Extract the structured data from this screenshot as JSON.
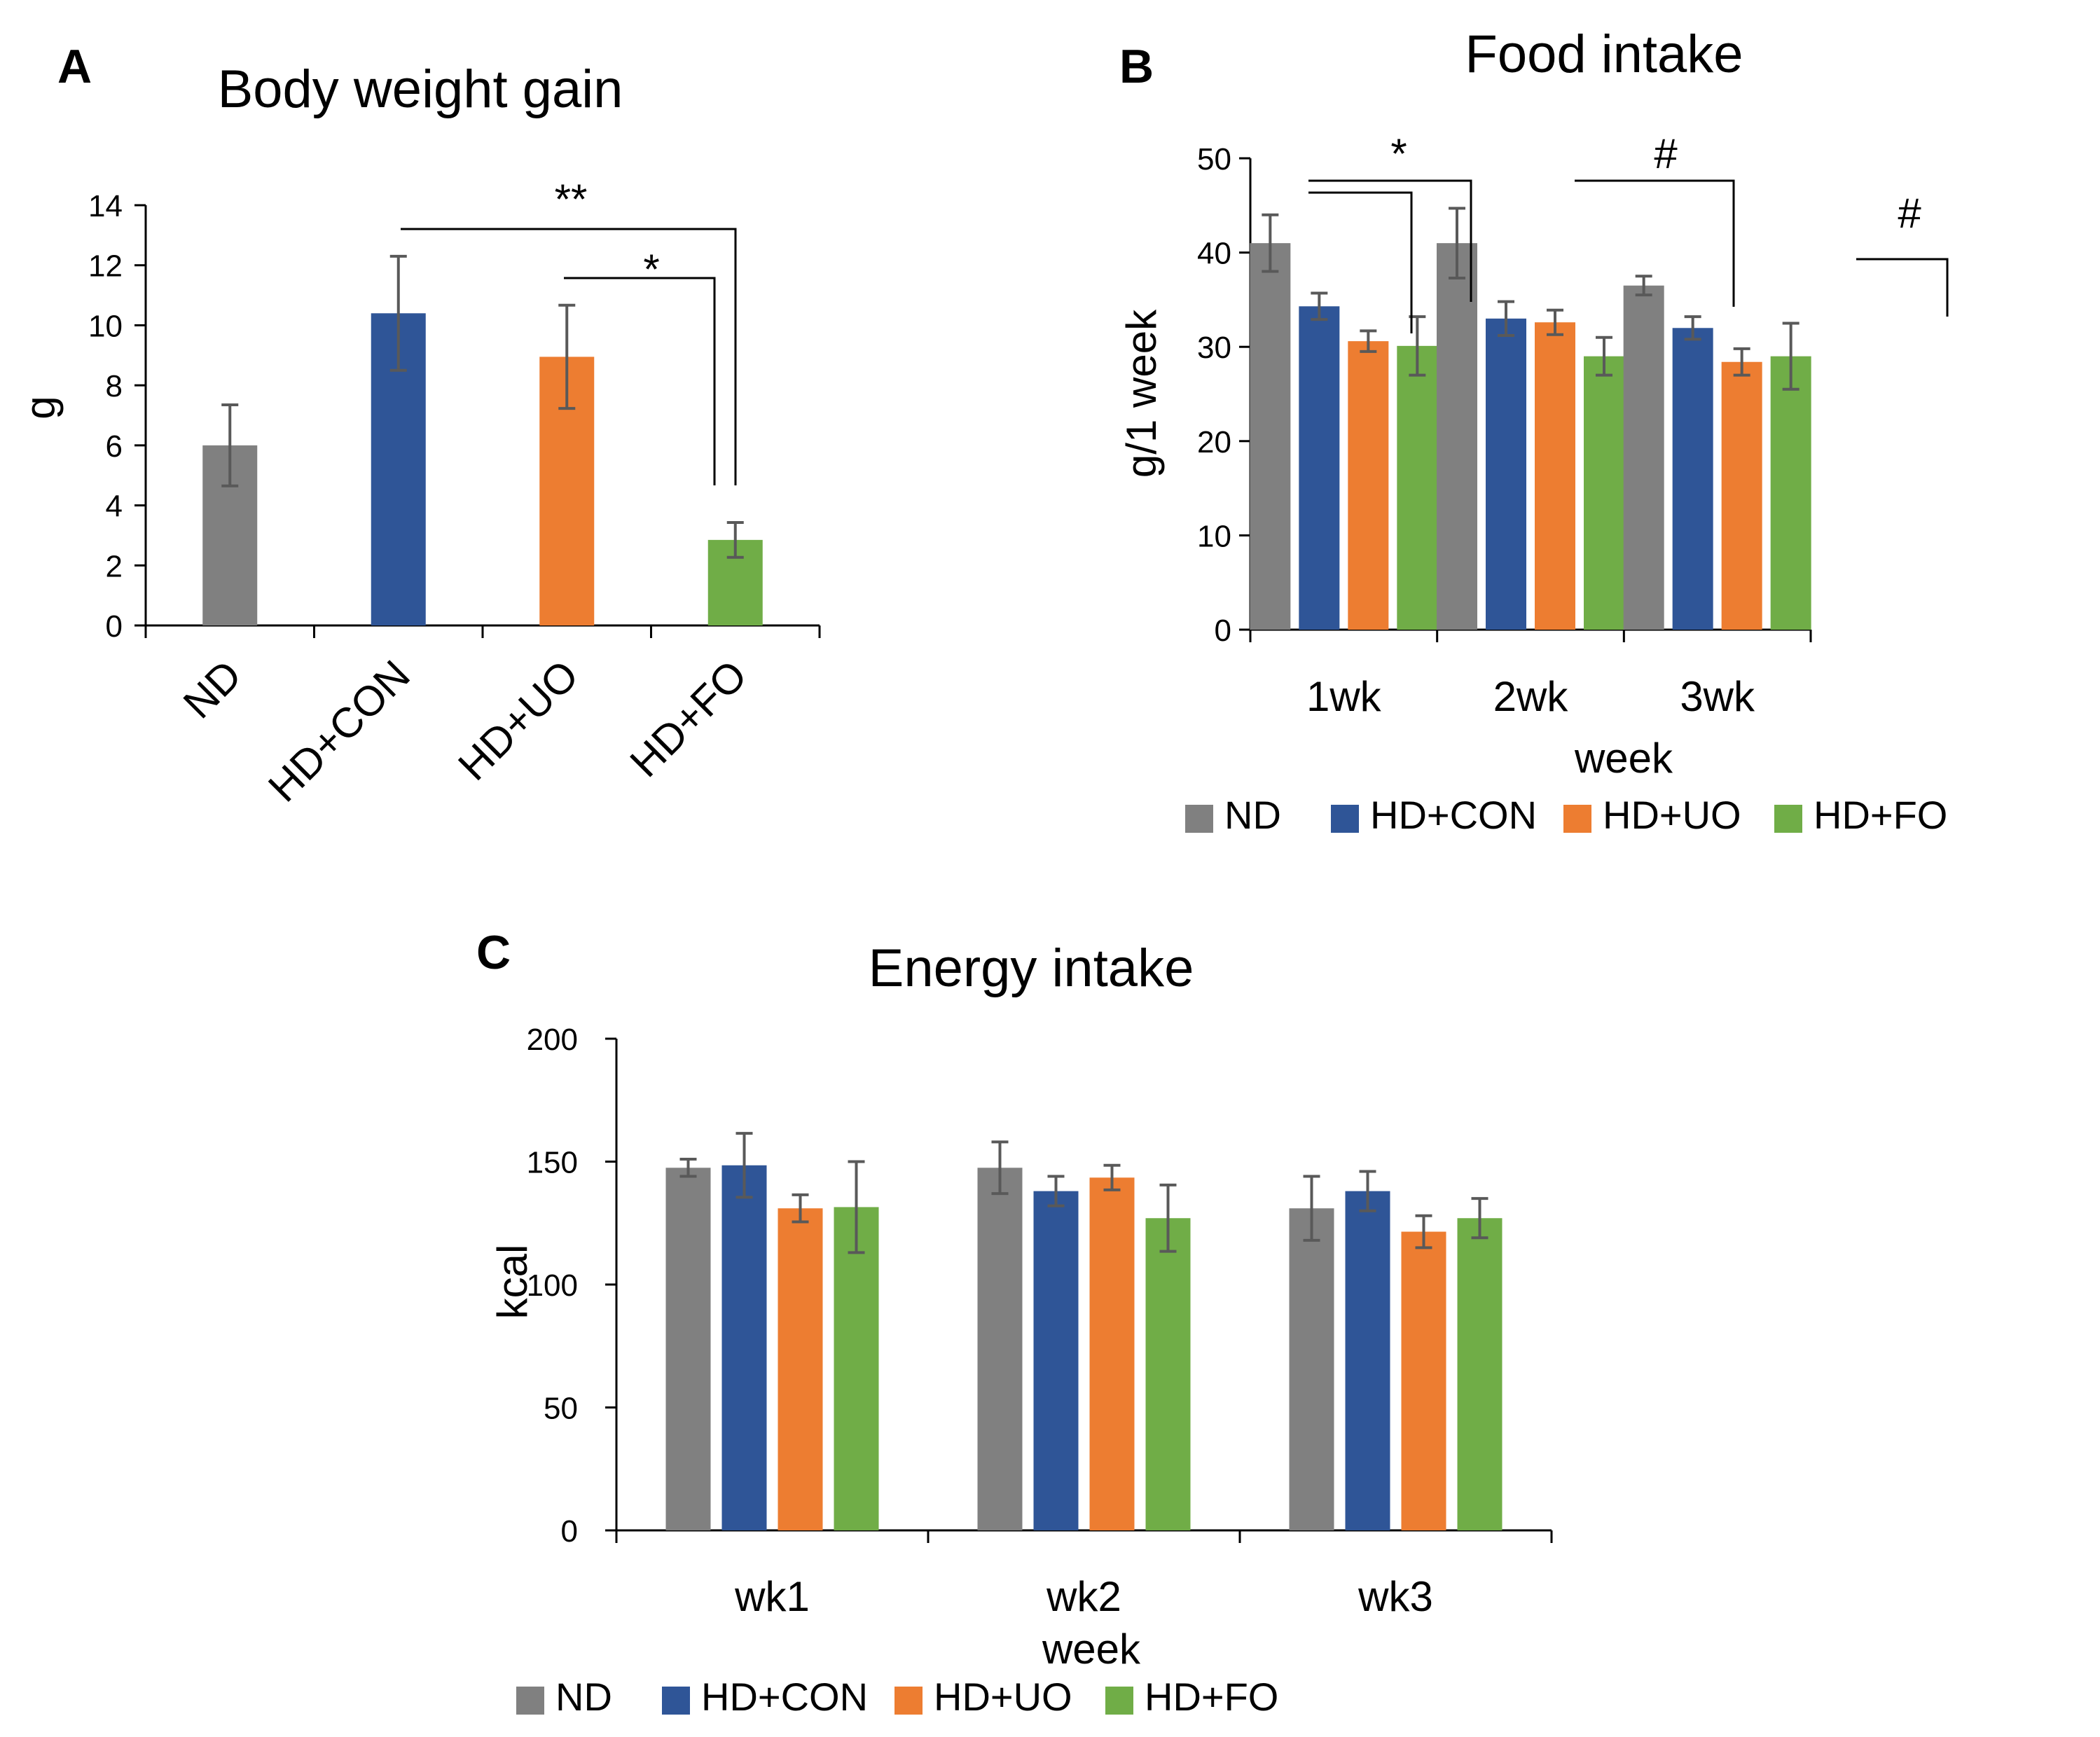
{
  "colors": {
    "ND": "#808080",
    "HD+CON": "#2F5597",
    "HD+UO": "#ED7D31",
    "HD+FO": "#70AD47",
    "error_bar": "#595959",
    "axis": "#000000"
  },
  "chart_data": [
    {
      "panel": "A",
      "type": "bar",
      "title": "Body weight gain",
      "xlabel": "",
      "ylabel": "g",
      "ylim": [
        0,
        14
      ],
      "yticks": [
        "0",
        "2",
        "4",
        "6",
        "8",
        "10",
        "12",
        "14"
      ],
      "categories": [
        "ND",
        "HD+CON",
        "HD+UO",
        "HD+FO"
      ],
      "values": [
        6.0,
        10.4,
        8.95,
        2.85
      ],
      "errors": [
        1.35,
        1.9,
        1.72,
        0.58
      ],
      "significance": [
        {
          "from": "HD+CON",
          "to": "HD+FO",
          "label": "**"
        },
        {
          "from": "HD+UO",
          "to": "HD+FO",
          "label": "*"
        }
      ]
    },
    {
      "panel": "B",
      "type": "bar",
      "title": "Food intake",
      "xlabel": "week",
      "ylabel": "g/1 week",
      "ylim": [
        0,
        50
      ],
      "yticks": [
        "0",
        "10",
        "20",
        "30",
        "40",
        "50"
      ],
      "categories": [
        "1wk",
        "2wk",
        "3wk"
      ],
      "series": [
        {
          "name": "ND",
          "values": [
            41.0,
            41.0,
            36.5
          ],
          "errors": [
            3.0,
            3.7,
            1.0
          ]
        },
        {
          "name": "HD+CON",
          "values": [
            34.3,
            33.0,
            32.0
          ],
          "errors": [
            1.4,
            1.8,
            1.2
          ]
        },
        {
          "name": "HD+UO",
          "values": [
            30.6,
            32.6,
            28.4
          ],
          "errors": [
            1.1,
            1.3,
            1.4
          ]
        },
        {
          "name": "HD+FO",
          "values": [
            30.1,
            29.0,
            29.0
          ],
          "errors": [
            3.1,
            2.0,
            3.5
          ]
        }
      ],
      "legend": [
        "ND",
        "HD+CON",
        "HD+UO",
        "HD+FO"
      ],
      "legend_position": "bottom",
      "significance": [
        {
          "group": "1wk",
          "from": "ND",
          "to": [
            "HD+UO",
            "HD+FO"
          ],
          "label": "*"
        },
        {
          "group": "2wk",
          "from": "ND",
          "to": [
            "HD+FO"
          ],
          "label": "#"
        },
        {
          "group": "3wk",
          "from": "ND",
          "to": [
            "HD+UO"
          ],
          "label": "#"
        }
      ]
    },
    {
      "panel": "C",
      "type": "bar",
      "title": "Energy intake",
      "xlabel": "week",
      "ylabel": "kcal",
      "ylim": [
        0,
        200
      ],
      "yticks": [
        "0",
        "50",
        "100",
        "150",
        "200"
      ],
      "categories": [
        "wk1",
        "wk2",
        "wk3"
      ],
      "series": [
        {
          "name": "ND",
          "values": [
            147.5,
            147.5,
            131.0
          ],
          "errors": [
            3.5,
            10.5,
            13.0
          ]
        },
        {
          "name": "HD+CON",
          "values": [
            148.5,
            138.0,
            138.0
          ],
          "errors": [
            13.0,
            6.0,
            8.0
          ]
        },
        {
          "name": "HD+UO",
          "values": [
            131.0,
            143.5,
            121.5
          ],
          "errors": [
            5.5,
            5.0,
            6.5
          ]
        },
        {
          "name": "HD+FO",
          "values": [
            131.5,
            127.0,
            127.0
          ],
          "errors": [
            18.5,
            13.5,
            8.0
          ]
        }
      ],
      "legend": [
        "ND",
        "HD+CON",
        "HD+UO",
        "HD+FO"
      ],
      "legend_position": "bottom"
    }
  ]
}
